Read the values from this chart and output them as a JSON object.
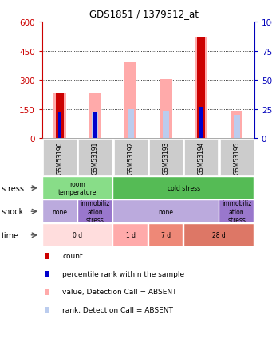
{
  "title": "GDS1851 / 1379512_at",
  "samples": [
    "GSM53190",
    "GSM53191",
    "GSM53192",
    "GSM53193",
    "GSM53194",
    "GSM53195"
  ],
  "ylim_left": [
    0,
    600
  ],
  "ylim_right": [
    0,
    100
  ],
  "yticks_left": [
    0,
    150,
    300,
    450,
    600
  ],
  "yticks_right": [
    0,
    25,
    50,
    75,
    100
  ],
  "pink_bar_heights": [
    230,
    230,
    390,
    305,
    520,
    140
  ],
  "pink_rank_heights": [
    22,
    22,
    25,
    23,
    27,
    20
  ],
  "red_bar_heights": [
    230,
    0,
    0,
    0,
    520,
    0
  ],
  "blue_heights": [
    22,
    22,
    0,
    0,
    27,
    0
  ],
  "has_blue": [
    true,
    true,
    false,
    false,
    true,
    false
  ],
  "stress_row": [
    {
      "label": "room\ntemperature",
      "span": [
        0,
        2
      ],
      "color": "#88DD88"
    },
    {
      "label": "cold stress",
      "span": [
        2,
        6
      ],
      "color": "#55BB55"
    }
  ],
  "shock_row": [
    {
      "label": "none",
      "span": [
        0,
        1
      ],
      "color": "#BBAADD"
    },
    {
      "label": "immobiliz\nation\nstress",
      "span": [
        1,
        2
      ],
      "color": "#9977CC"
    },
    {
      "label": "none",
      "span": [
        2,
        5
      ],
      "color": "#BBAADD"
    },
    {
      "label": "immobiliz\nation\nstress",
      "span": [
        5,
        6
      ],
      "color": "#9977CC"
    }
  ],
  "time_row": [
    {
      "label": "0 d",
      "span": [
        0,
        2
      ],
      "color": "#FFDDDD"
    },
    {
      "label": "1 d",
      "span": [
        2,
        3
      ],
      "color": "#FFAAAA"
    },
    {
      "label": "7 d",
      "span": [
        3,
        4
      ],
      "color": "#EE8877"
    },
    {
      "label": "28 d",
      "span": [
        4,
        6
      ],
      "color": "#DD7766"
    }
  ],
  "legend_items": [
    {
      "color": "#CC0000",
      "label": "count"
    },
    {
      "color": "#0000CC",
      "label": "percentile rank within the sample"
    },
    {
      "color": "#FFAAAA",
      "label": "value, Detection Call = ABSENT"
    },
    {
      "color": "#BBCCEE",
      "label": "rank, Detection Call = ABSENT"
    }
  ],
  "left_axis_color": "#CC0000",
  "right_axis_color": "#0000BB",
  "sample_box_color": "#CCCCCC",
  "n_samples": 6
}
